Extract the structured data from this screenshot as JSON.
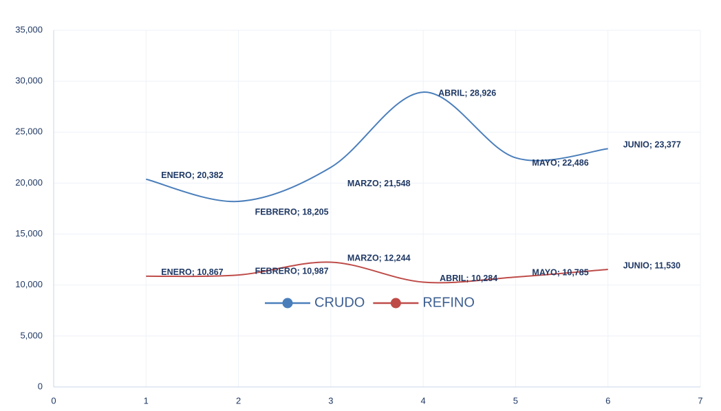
{
  "chart_data": {
    "type": "line",
    "x": [
      1,
      2,
      3,
      4,
      5,
      6
    ],
    "xlim": [
      0,
      7
    ],
    "xticks": [
      0,
      1,
      2,
      3,
      4,
      5,
      6,
      7
    ],
    "ylim": [
      0,
      35000
    ],
    "yticks": [
      0,
      {
        "value": 5000,
        "label": "5,000"
      },
      {
        "value": 10000,
        "label": "10,000"
      },
      {
        "value": 15000,
        "label": "15,000"
      },
      {
        "value": 20000,
        "label": "20,000"
      },
      {
        "value": 25000,
        "label": "25,000"
      },
      {
        "value": 30000,
        "label": "30,000"
      },
      {
        "value": 35000,
        "label": "35,000"
      }
    ],
    "grid": true,
    "smooth": true,
    "legend": "center",
    "series": [
      {
        "name": "CRUDO",
        "color": "#4a7ebb",
        "values": [
          20382,
          18205,
          21548,
          28926,
          22486,
          23377
        ],
        "value_labels": [
          "ENERO; 20,382",
          "FEBRERO; 18,205",
          "MARZO; 21,548",
          "ABRIL; 28,926",
          "MAYO; 22,486",
          "JUNIO; 23,377"
        ]
      },
      {
        "name": "REFINO",
        "color": "#be4b48",
        "values": [
          10867,
          10987,
          12244,
          10284,
          10785,
          11530
        ],
        "value_labels": [
          "ENERO; 10,867",
          "FEBRERO; 10,987",
          "MARZO; 12,244",
          "ABRIL; 10,284",
          "MAYO; 10,785",
          "JUNIO; 11,530"
        ]
      }
    ]
  }
}
